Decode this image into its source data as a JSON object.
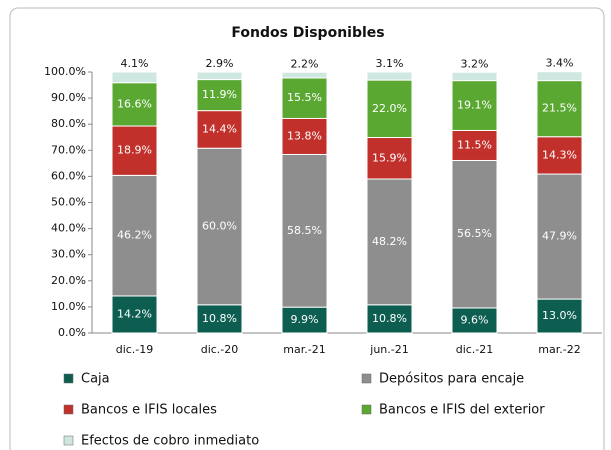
{
  "chart_data": {
    "type": "stacked_bar",
    "title": "Fondos Disponibles",
    "categories": [
      "dic.-19",
      "dic.-20",
      "mar.-21",
      "jun.-21",
      "dic.-21",
      "mar.-22"
    ],
    "series": [
      {
        "name": "Caja",
        "color": "#0d5e50",
        "values": [
          14.2,
          10.8,
          9.9,
          10.8,
          9.6,
          13.0
        ],
        "value_labels": [
          "14.2%",
          "10.8%",
          "9.9%",
          "10.8%",
          "9.6%",
          "13.0%"
        ]
      },
      {
        "name": "Depósitos para encaje",
        "color": "#8e8e8e",
        "values": [
          46.2,
          60.0,
          58.5,
          48.2,
          56.5,
          47.9
        ],
        "value_labels": [
          "46.2%",
          "60.0%",
          "58.5%",
          "48.2%",
          "56.5%",
          "47.9%"
        ]
      },
      {
        "name": "Bancos e IFIS locales",
        "color": "#c1302a",
        "values": [
          18.9,
          14.4,
          13.8,
          15.9,
          11.5,
          14.3
        ],
        "value_labels": [
          "18.9%",
          "14.4%",
          "13.8%",
          "15.9%",
          "11.5%",
          "14.3%"
        ]
      },
      {
        "name": "Bancos e IFIS del exterior",
        "color": "#5aa832",
        "values": [
          16.6,
          11.9,
          15.5,
          22.0,
          19.1,
          21.5
        ],
        "value_labels": [
          "16.6%",
          "11.9%",
          "15.5%",
          "22.0%",
          "19.1%",
          "21.5%"
        ]
      },
      {
        "name": "Efectos de cobro inmediato",
        "color": "#cfe7e1",
        "values": [
          4.1,
          2.9,
          2.2,
          3.1,
          3.2,
          3.4
        ],
        "value_labels": [
          "4.1%",
          "2.9%",
          "2.2%",
          "3.1%",
          "3.2%",
          "3.4%"
        ]
      }
    ],
    "ylim": [
      0,
      100
    ],
    "yticks": [
      {
        "value": 0,
        "label": "0.0%"
      },
      {
        "value": 10,
        "label": "10.0%"
      },
      {
        "value": 20,
        "label": "20.0%"
      },
      {
        "value": 30,
        "label": "30.0%"
      },
      {
        "value": 40,
        "label": "40.0%"
      },
      {
        "value": 50,
        "label": "50.0%"
      },
      {
        "value": 60,
        "label": "60.0%"
      },
      {
        "value": 70,
        "label": "70.0%"
      },
      {
        "value": 80,
        "label": "80.0%"
      },
      {
        "value": 90,
        "label": "90.0%"
      },
      {
        "value": 100,
        "label": "100.0%"
      }
    ]
  }
}
